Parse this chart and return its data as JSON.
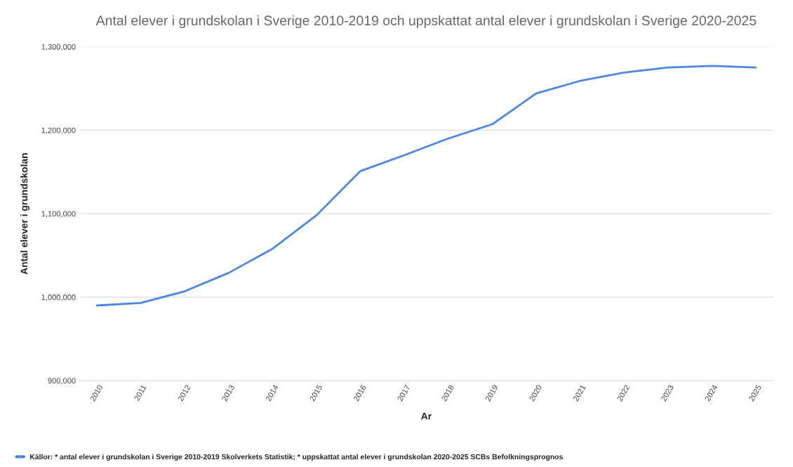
{
  "chart_data": {
    "type": "line",
    "title": "Antal elever i grundskolan i Sverige 2010-2019 och uppskattat antal elever i grundskolan i Sverige 2020-2025",
    "xlabel": "Ar",
    "ylabel": "Antal elever i grundskolan",
    "categories": [
      "2010",
      "2011",
      "2012",
      "2013",
      "2014",
      "2015",
      "2016",
      "2017",
      "2018",
      "2019",
      "2020",
      "2021",
      "2022",
      "2023",
      "2024",
      "2025"
    ],
    "series": [
      {
        "name": "Källor: * antal elever i grundskolan i Sverige 2010-2019 Skolverkets Statistik; * uppskattat antal elever i grundskolan 2020-2025 SCBs Befolkningsprognos",
        "color": "#4a86e8",
        "values": [
          990000,
          993000,
          1007000,
          1029000,
          1058000,
          1098000,
          1151000,
          1170000,
          1190000,
          1207000,
          1244000,
          1259000,
          1269000,
          1275000,
          1277000,
          1275000
        ]
      }
    ],
    "ylim": [
      900000,
      1300000
    ],
    "yticks": [
      {
        "value": 900000,
        "label": "900,000"
      },
      {
        "value": 1000000,
        "label": "1,000,000"
      },
      {
        "value": 1100000,
        "label": "1,100,000"
      },
      {
        "value": 1200000,
        "label": "1,200,000"
      },
      {
        "value": 1300000,
        "label": "1,300,000"
      }
    ],
    "grid": "y",
    "legend": "bottom left"
  }
}
